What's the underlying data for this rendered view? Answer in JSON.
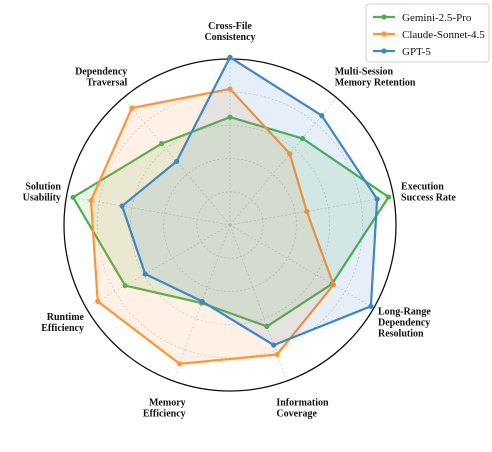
{
  "chart_data": {
    "type": "radar",
    "axes": [
      [
        "Cross-File",
        "Consistency"
      ],
      [
        "Multi-Session",
        "Memory Retention"
      ],
      [
        "Execution",
        "Success Rate"
      ],
      [
        "Long-Range",
        "Dependency",
        "Resolution"
      ],
      [
        "Information",
        "Coverage"
      ],
      [
        "Memory",
        "Efficiency"
      ],
      [
        "Runtime",
        "Efficiency"
      ],
      [
        "Solution",
        "Usability"
      ],
      [
        "Dependency",
        "Traversal"
      ]
    ],
    "rlim": [
      0,
      1
    ],
    "grid": true,
    "legend_position": "top-right",
    "series": [
      {
        "name": "Gemini-2.5-Pro",
        "color": "#4caf50",
        "values": [
          0.65,
          0.68,
          0.97,
          0.71,
          0.65,
          0.5,
          0.73,
          0.96,
          0.64
        ]
      },
      {
        "name": "Claude-Sonnet-4.5",
        "color": "#ff9533",
        "values": [
          0.82,
          0.56,
          0.47,
          0.72,
          0.83,
          0.89,
          0.92,
          0.85,
          0.92
        ]
      },
      {
        "name": "GPT-5",
        "color": "#3f87c4",
        "values": [
          1.01,
          0.86,
          0.9,
          0.98,
          0.77,
          0.49,
          0.59,
          0.66,
          0.5
        ]
      }
    ]
  }
}
